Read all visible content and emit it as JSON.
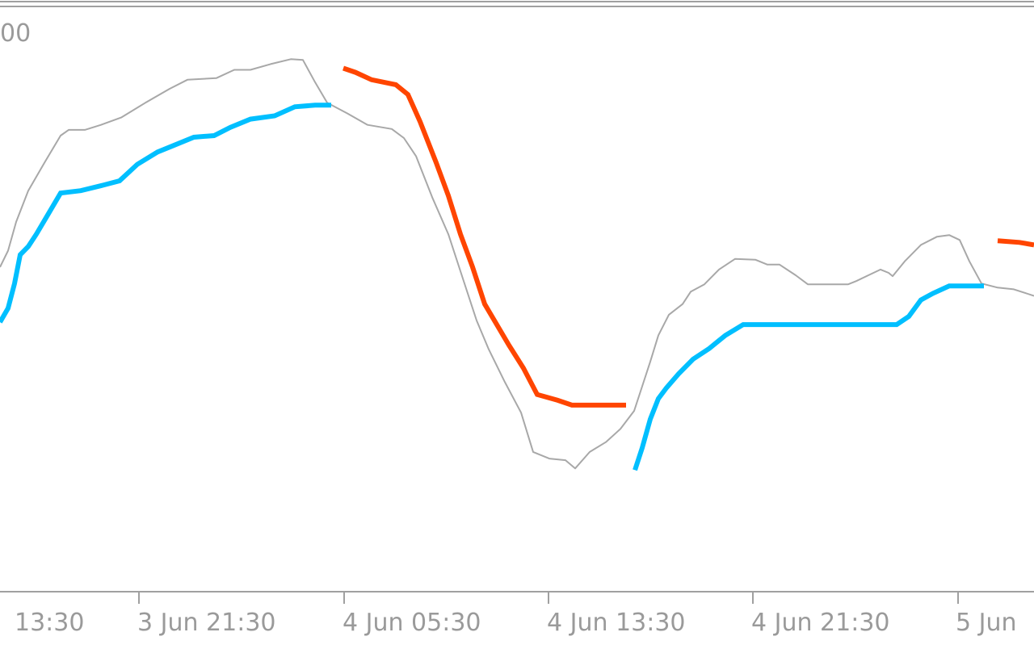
{
  "chart": {
    "price_label": "00"
  },
  "colors": {
    "background": "#ffffff",
    "frame": "#a0a0a0",
    "price_line": "#a8a8a8",
    "support_line": "#00bfff",
    "resistance_line": "#ff4500",
    "tick_text": "#9a9a9a"
  },
  "chart_data": {
    "type": "line",
    "title": "",
    "xlabel": "",
    "ylabel": "",
    "x_ticks": [
      "13:30",
      "3 Jun 21:30",
      "4 Jun 05:30",
      "4 Jun 13:30",
      "4 Jun 21:30",
      "5 Jun"
    ],
    "ylim": [
      0,
      720
    ],
    "grid": false,
    "legend": "none",
    "series": [
      {
        "kind": "price",
        "values": [
          [
            0,
            325
          ],
          [
            10,
            305
          ],
          [
            20,
            270
          ],
          [
            35,
            232
          ],
          [
            55,
            198
          ],
          [
            75,
            165
          ],
          [
            85,
            158
          ],
          [
            105,
            158
          ],
          [
            125,
            152
          ],
          [
            150,
            143
          ],
          [
            180,
            125
          ],
          [
            210,
            108
          ],
          [
            232,
            97
          ],
          [
            268,
            95
          ],
          [
            290,
            85
          ],
          [
            310,
            85
          ],
          [
            335,
            78
          ],
          [
            360,
            72
          ],
          [
            375,
            73
          ],
          [
            390,
            100
          ],
          [
            405,
            125
          ],
          [
            430,
            138
          ],
          [
            455,
            152
          ],
          [
            485,
            157
          ],
          [
            500,
            168
          ],
          [
            515,
            190
          ],
          [
            535,
            240
          ],
          [
            555,
            285
          ],
          [
            570,
            330
          ],
          [
            590,
            390
          ],
          [
            605,
            425
          ],
          [
            625,
            465
          ],
          [
            645,
            502
          ],
          [
            660,
            550
          ],
          [
            680,
            558
          ],
          [
            700,
            560
          ],
          [
            712,
            570
          ],
          [
            730,
            550
          ],
          [
            750,
            538
          ],
          [
            768,
            522
          ],
          [
            785,
            500
          ],
          [
            795,
            470
          ],
          [
            805,
            440
          ],
          [
            815,
            408
          ],
          [
            828,
            383
          ],
          [
            845,
            370
          ],
          [
            855,
            355
          ],
          [
            872,
            346
          ],
          [
            890,
            328
          ],
          [
            910,
            315
          ],
          [
            935,
            316
          ],
          [
            950,
            322
          ],
          [
            965,
            322
          ],
          [
            985,
            335
          ],
          [
            1000,
            346
          ],
          [
            1025,
            346
          ],
          [
            1050,
            346
          ],
          [
            1060,
            342
          ],
          [
            1075,
            335
          ],
          [
            1090,
            328
          ],
          [
            1100,
            332
          ],
          [
            1105,
            336
          ],
          [
            1120,
            318
          ],
          [
            1140,
            298
          ],
          [
            1160,
            288
          ],
          [
            1175,
            286
          ],
          [
            1188,
            292
          ],
          [
            1200,
            318
          ],
          [
            1215,
            345
          ],
          [
            1235,
            350
          ],
          [
            1255,
            352
          ],
          [
            1280,
            360
          ]
        ]
      },
      {
        "kind": "support",
        "segments": [
          [
            [
              0,
              392
            ],
            [
              10,
              375
            ],
            [
              18,
              345
            ],
            [
              25,
              310
            ],
            [
              35,
              300
            ],
            [
              45,
              285
            ],
            [
              60,
              260
            ],
            [
              75,
              235
            ],
            [
              100,
              232
            ],
            [
              125,
              226
            ],
            [
              148,
              220
            ],
            [
              170,
              200
            ],
            [
              195,
              185
            ],
            [
              215,
              177
            ],
            [
              240,
              167
            ],
            [
              265,
              165
            ],
            [
              285,
              155
            ],
            [
              310,
              145
            ],
            [
              340,
              141
            ],
            [
              365,
              130
            ],
            [
              390,
              128
            ],
            [
              410,
              128
            ]
          ],
          [
            [
              786,
              572
            ],
            [
              795,
              545
            ],
            [
              805,
              510
            ],
            [
              815,
              485
            ],
            [
              825,
              472
            ],
            [
              840,
              455
            ],
            [
              858,
              437
            ],
            [
              878,
              424
            ],
            [
              898,
              408
            ],
            [
              920,
              395
            ],
            [
              1000,
              395
            ],
            [
              1060,
              395
            ],
            [
              1110,
              395
            ],
            [
              1125,
              385
            ],
            [
              1140,
              365
            ],
            [
              1155,
              357
            ],
            [
              1175,
              348
            ],
            [
              1218,
              348
            ]
          ]
        ]
      },
      {
        "kind": "resistance",
        "segments": [
          [
            [
              425,
              83
            ],
            [
              440,
              88
            ],
            [
              460,
              97
            ],
            [
              490,
              103
            ],
            [
              505,
              115
            ],
            [
              520,
              148
            ],
            [
              540,
              198
            ],
            [
              555,
              238
            ],
            [
              570,
              285
            ],
            [
              585,
              325
            ],
            [
              600,
              370
            ],
            [
              615,
              395
            ],
            [
              630,
              420
            ],
            [
              648,
              448
            ],
            [
              665,
              480
            ],
            [
              690,
              487
            ],
            [
              708,
              493
            ],
            [
              775,
              493
            ]
          ],
          [
            [
              1235,
              293
            ],
            [
              1262,
              295
            ],
            [
              1280,
              298
            ]
          ]
        ]
      }
    ]
  }
}
